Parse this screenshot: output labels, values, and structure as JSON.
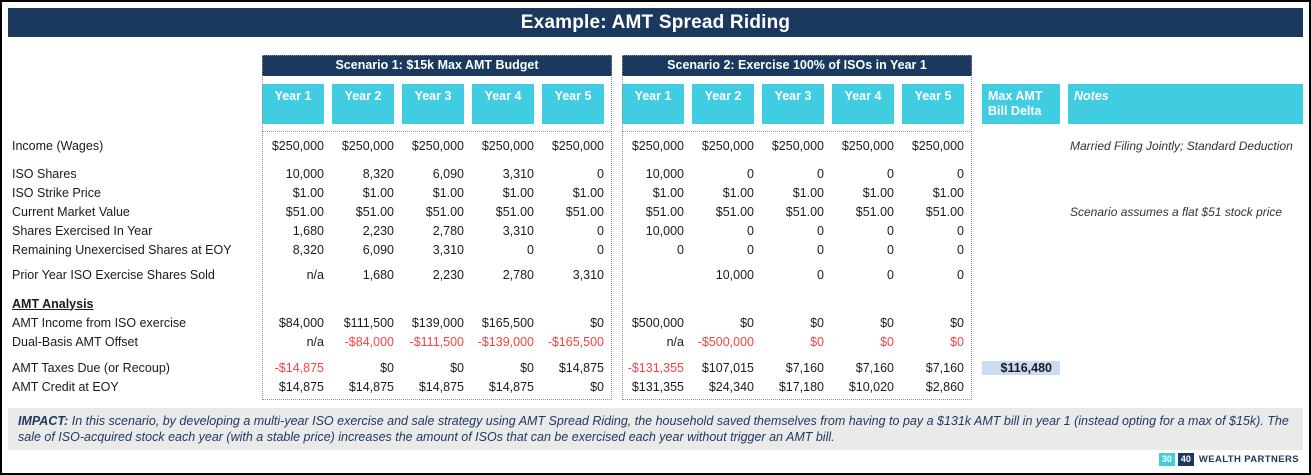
{
  "title": "Example: AMT Spread Riding",
  "colors": {
    "navy": "#1B395E",
    "cyan": "#40CDE2",
    "red": "#FA4141",
    "hl": "#C9DCF1",
    "impact-bg": "#EAEAEB"
  },
  "table": {
    "scenario1": {
      "title": "Scenario 1: $15k Max AMT Budget",
      "years": [
        "Year 1",
        "Year 2",
        "Year 3",
        "Year 4",
        "Year 5"
      ]
    },
    "scenario2": {
      "title": "Scenario 2: Exercise 100% of ISOs in Year 1",
      "years": [
        "Year 1",
        "Year 2",
        "Year 3",
        "Year 4",
        "Year 5"
      ]
    },
    "delta_header": [
      "Max AMT",
      "Bill Delta"
    ],
    "notes_header": "Notes",
    "rows": [
      {
        "type": "data",
        "label": "Income (Wages)",
        "s1": [
          "$250,000",
          "$250,000",
          "$250,000",
          "$250,000",
          "$250,000"
        ],
        "s2": [
          "$250,000",
          "$250,000",
          "$250,000",
          "$250,000",
          "$250,000"
        ],
        "note": "Married Filing Jointly; Standard Deduction"
      },
      {
        "type": "spacer",
        "h": 9
      },
      {
        "type": "data",
        "label": "ISO Shares",
        "s1": [
          "10,000",
          "8,320",
          "6,090",
          "3,310",
          "0"
        ],
        "s2": [
          "10,000",
          "0",
          "0",
          "0",
          "0"
        ]
      },
      {
        "type": "data",
        "label": "ISO Strike Price",
        "s1": [
          "$1.00",
          "$1.00",
          "$1.00",
          "$1.00",
          "$1.00"
        ],
        "s2": [
          "$1.00",
          "$1.00",
          "$1.00",
          "$1.00",
          "$1.00"
        ]
      },
      {
        "type": "data",
        "label": "Current Market Value",
        "s1": [
          "$51.00",
          "$51.00",
          "$51.00",
          "$51.00",
          "$51.00"
        ],
        "s2": [
          "$51.00",
          "$51.00",
          "$51.00",
          "$51.00",
          "$51.00"
        ],
        "note": "Scenario assumes a flat $51 stock price"
      },
      {
        "type": "data",
        "label": "Shares Exercised In Year",
        "s1": [
          "1,680",
          "2,230",
          "2,780",
          "3,310",
          "0"
        ],
        "s2": [
          "10,000",
          "0",
          "0",
          "0",
          "0"
        ]
      },
      {
        "type": "data",
        "label": "Remaining Unexercised Shares at EOY",
        "s1": [
          "8,320",
          "6,090",
          "3,310",
          "0",
          "0"
        ],
        "s2": [
          "0",
          "0",
          "0",
          "0",
          "0"
        ]
      },
      {
        "type": "spacer",
        "h": 6
      },
      {
        "type": "data",
        "label": "Prior Year ISO Exercise Shares Sold",
        "s1": [
          "n/a",
          "1,680",
          "2,230",
          "2,780",
          "3,310"
        ],
        "s2": [
          "",
          "10,000",
          "0",
          "0",
          "0"
        ]
      },
      {
        "type": "spacer",
        "h": 10
      },
      {
        "type": "section",
        "label": "AMT Analysis"
      },
      {
        "type": "data",
        "label": "AMT Income from ISO exercise",
        "s1": [
          "$84,000",
          "$111,500",
          "$139,000",
          "$165,500",
          "$0"
        ],
        "s2": [
          "$500,000",
          "$0",
          "$0",
          "$0",
          "$0"
        ]
      },
      {
        "type": "data",
        "label": "Dual-Basis AMT Offset",
        "s1": [
          "n/a",
          {
            "t": "-$84,000",
            "red": true
          },
          {
            "t": "-$111,500",
            "red": true
          },
          {
            "t": "-$139,000",
            "red": true
          },
          {
            "t": "-$165,500",
            "red": true
          }
        ],
        "s2": [
          "n/a",
          {
            "t": "-$500,000",
            "red": true
          },
          {
            "t": "$0",
            "red": true
          },
          {
            "t": "$0",
            "red": true
          },
          {
            "t": "$0",
            "red": true
          }
        ]
      },
      {
        "type": "spacer",
        "h": 7
      },
      {
        "type": "data",
        "label": "AMT Taxes Due (or Recoup)",
        "s1": [
          {
            "t": "-$14,875",
            "red": true
          },
          "$0",
          "$0",
          "$0",
          "$14,875"
        ],
        "s2": [
          {
            "t": "-$131,355",
            "red": true
          },
          "$107,015",
          "$7,160",
          "$7,160",
          "$7,160"
        ],
        "delta": {
          "t": "$116,480",
          "highlight": true
        }
      },
      {
        "type": "data",
        "label": "AMT Credit at EOY",
        "s1": [
          "$14,875",
          "$14,875",
          "$14,875",
          "$14,875",
          "$0"
        ],
        "s2": [
          "$131,355",
          "$24,340",
          "$17,180",
          "$10,020",
          "$2,860"
        ]
      }
    ]
  },
  "impact": {
    "label": "IMPACT:",
    "text": "In this scenario, by developing a multi-year ISO exercise and sale strategy using AMT Spread Riding, the household saved themselves from having to pay a $131k AMT bill in year 1 (instead opting for a max of $15k). The sale of ISO-acquired stock each year (with a stable price) increases the amount of ISOs that can be exercised each year without trigger an AMT bill."
  },
  "logo": {
    "box1": "30",
    "box2": "40",
    "name": "WEALTH PARTNERS"
  }
}
